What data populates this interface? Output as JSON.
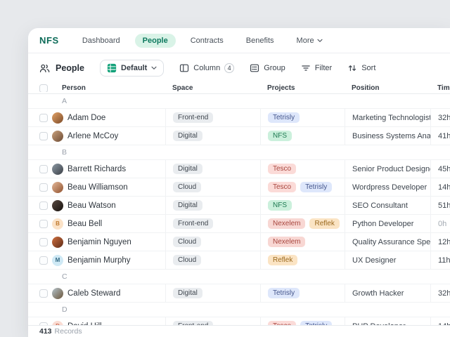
{
  "brand": "NFS",
  "colors": {
    "brand_green": "#0c6b58",
    "active_pill_bg": "#d9f3e7",
    "active_pill_fg": "#0e7a5f",
    "view_icon_green": "#12a179",
    "page_bg": "#e7e9ec"
  },
  "nav": {
    "items": [
      {
        "label": "Dashboard",
        "active": false
      },
      {
        "label": "People",
        "active": true
      },
      {
        "label": "Contracts",
        "active": false
      },
      {
        "label": "Benefits",
        "active": false
      },
      {
        "label": "More",
        "active": false,
        "has_dropdown": true
      }
    ]
  },
  "toolbar": {
    "title": "People",
    "view_selector": {
      "label": "Default"
    },
    "column": {
      "label": "Column",
      "count": "4"
    },
    "group_label": "Group",
    "filter_label": "Filter",
    "sort_label": "Sort"
  },
  "table": {
    "columns": [
      "Person",
      "Space",
      "Projects",
      "Position",
      "Time"
    ],
    "space_tag_style": {
      "bg": "#e9ecef",
      "fg": "#40474f"
    },
    "tag_palette": {
      "Tetrisly": {
        "bg": "#dee7fb",
        "fg": "#45568c"
      },
      "NFS": {
        "bg": "#cbf0dc",
        "fg": "#1e7a52"
      },
      "Tesco": {
        "bg": "#fbdbd8",
        "fg": "#a8473f"
      },
      "Nexelem": {
        "bg": "#f8d7d3",
        "fg": "#a8473f"
      },
      "Reflek": {
        "bg": "#fbe4c4",
        "fg": "#9c6a1f"
      }
    },
    "groups": [
      {
        "letter": "A",
        "rows": [
          {
            "name": "Adam Doe",
            "avatar": {
              "type": "photo",
              "g": [
                "#e2a368",
                "#7d4b28"
              ]
            },
            "space": "Front-end",
            "projects": [
              "Tetrisly"
            ],
            "position": "Marketing Technologist",
            "time": "32h"
          },
          {
            "name": "Arlene McCoy",
            "avatar": {
              "type": "photo",
              "g": [
                "#caa27e",
                "#6d4b33"
              ]
            },
            "space": "Digital",
            "projects": [
              "NFS"
            ],
            "position": "Business Systems Analyst",
            "time": "41h"
          }
        ]
      },
      {
        "letter": "B",
        "rows": [
          {
            "name": "Barrett Richards",
            "avatar": {
              "type": "photo",
              "g": [
                "#8e9aa5",
                "#3a3f46"
              ]
            },
            "space": "Digital",
            "projects": [
              "Tesco"
            ],
            "position": "Senior Product Designer",
            "time": "45h"
          },
          {
            "name": "Beau Williamson",
            "avatar": {
              "type": "photo",
              "g": [
                "#e4b99a",
                "#91522e"
              ]
            },
            "space": "Cloud",
            "projects": [
              "Tesco",
              "Tetrisly"
            ],
            "position": "Wordpress Developer",
            "time": "14h"
          },
          {
            "name": "Beau Watson",
            "avatar": {
              "type": "photo",
              "g": [
                "#5a4a42",
                "#17120f"
              ]
            },
            "space": "Digital",
            "projects": [
              "NFS"
            ],
            "position": "SEO Consultant",
            "time": "51h"
          },
          {
            "name": "Beau Bell",
            "avatar": {
              "type": "initial",
              "initial": "B",
              "bg": "#fbe2c7",
              "fg": "#c07a2f"
            },
            "space": "Front-end",
            "projects": [
              "Nexelem",
              "Reflek"
            ],
            "position": "Python Developer",
            "time": "0h",
            "time_muted": true
          },
          {
            "name": "Benjamin Nguyen",
            "avatar": {
              "type": "photo",
              "g": [
                "#d0703f",
                "#5e2c18"
              ]
            },
            "space": "Cloud",
            "projects": [
              "Nexelem"
            ],
            "position": "Quality Assurance Specialist",
            "time": "12h"
          },
          {
            "name": "Benjamin Murphy",
            "avatar": {
              "type": "initial",
              "initial": "M",
              "bg": "#cfe9f5",
              "fg": "#356a85"
            },
            "space": "Cloud",
            "projects": [
              "Reflek"
            ],
            "position": "UX Designer",
            "time": "11h"
          }
        ]
      },
      {
        "letter": "C",
        "rows": [
          {
            "name": "Caleb Steward",
            "avatar": {
              "type": "photo",
              "g": [
                "#b4c4cc",
                "#6b553a"
              ]
            },
            "space": "Digital",
            "projects": [
              "Tetrisly"
            ],
            "position": "Growth Hacker",
            "time": "32h"
          }
        ]
      },
      {
        "letter": "D",
        "rows": [
          {
            "name": "David Hill",
            "avatar": {
              "type": "initial",
              "initial": "D",
              "bg": "#fadcd3",
              "fg": "#cf6a50"
            },
            "space": "Front-end",
            "projects": [
              "Tesco",
              "Tetrisly"
            ],
            "position": "PHP Developer",
            "time": "14h"
          }
        ]
      }
    ]
  },
  "footer": {
    "count": "413",
    "label": "Records"
  }
}
